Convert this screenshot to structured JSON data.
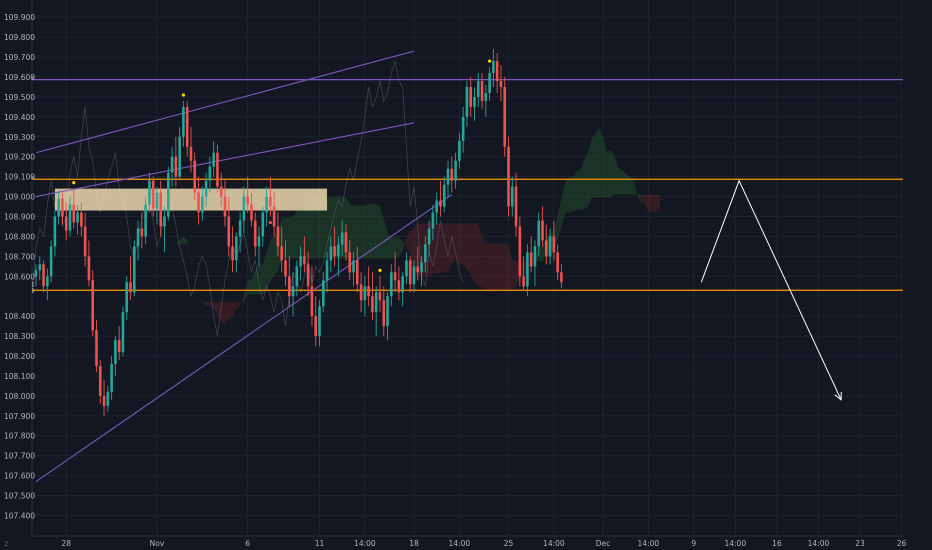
{
  "chart_data": {
    "type": "candlestick",
    "title": "",
    "xlabel": "",
    "ylabel": "",
    "ylim": [
      107.35,
      109.97
    ],
    "y_ticks": [
      "109.900",
      "109.800",
      "109.700",
      "109.600",
      "109.500",
      "109.400",
      "109.300",
      "109.200",
      "109.100",
      "109.000",
      "108.900",
      "108.800",
      "108.700",
      "108.600",
      "108.400",
      "108.300",
      "108.200",
      "108.100",
      "108.000",
      "107.900",
      "107.800",
      "107.700",
      "107.600",
      "107.500",
      "107.400"
    ],
    "x_ticks": [
      {
        "label": "28",
        "bar": 8
      },
      {
        "label": "Nov",
        "bar": 32
      },
      {
        "label": "6",
        "bar": 56
      },
      {
        "label": "11",
        "bar": 75
      },
      {
        "label": "14:00",
        "bar": 87
      },
      {
        "label": "18",
        "bar": 100
      },
      {
        "label": "14:00",
        "bar": 112
      },
      {
        "label": "25",
        "bar": 125
      },
      {
        "label": "14:00",
        "bar": 137
      },
      {
        "label": "Dec",
        "bar": 150
      },
      {
        "label": "14:00",
        "bar": 162
      },
      {
        "label": "9",
        "bar": 174
      },
      {
        "label": "14:00",
        "bar": 185
      },
      {
        "label": "16",
        "bar": 196
      },
      {
        "label": "14:00",
        "bar": 207
      },
      {
        "label": "23",
        "bar": 218
      },
      {
        "label": "26",
        "bar": 229
      }
    ],
    "corner_label": "2",
    "horizontal_levels": [
      {
        "value": 109.587,
        "label": "109.587",
        "color": "#7e57c2"
      },
      {
        "value": 109.087,
        "label": "109.087",
        "color": "#ff9800"
      },
      {
        "value": 108.53,
        "label": "108.530",
        "color": "#ff9800"
      }
    ],
    "price_tag": {
      "value": 108.558,
      "label": "108.558",
      "color": "#f23645"
    },
    "colors": {
      "up": "#26a69a",
      "down": "#ef5350",
      "up_cloud": "#2e7d32",
      "down_cloud": "#8e2b2b",
      "arrow": "#ffffff",
      "zone": "#f5deb3"
    },
    "trendlines": [
      {
        "from": [
          0,
          109.22
        ],
        "to": [
          100,
          109.73
        ]
      },
      {
        "from": [
          0,
          109.0
        ],
        "to": [
          100,
          109.37
        ]
      },
      {
        "from": [
          0,
          107.57
        ],
        "to": [
          110,
          109.01
        ]
      }
    ],
    "zone": {
      "bar_from": 5,
      "bar_to": 77,
      "top": 109.04,
      "bottom": 108.93
    },
    "projection": [
      {
        "bar": 176,
        "value": 108.57
      },
      {
        "bar": 186,
        "value": 109.08
      },
      {
        "bar": 213,
        "value": 107.98
      }
    ],
    "candles": [
      [
        108.6,
        108.66,
        108.55,
        108.63
      ],
      [
        108.63,
        108.7,
        108.58,
        108.66
      ],
      [
        108.66,
        108.68,
        108.52,
        108.55
      ],
      [
        108.55,
        108.64,
        108.48,
        108.6
      ],
      [
        108.6,
        108.78,
        108.57,
        108.75
      ],
      [
        108.75,
        108.93,
        108.7,
        108.9
      ],
      [
        108.9,
        109.03,
        108.86,
        108.99
      ],
      [
        108.99,
        109.02,
        108.86,
        108.9
      ],
      [
        108.9,
        108.97,
        108.78,
        108.83
      ],
      [
        108.83,
        109.0,
        108.8,
        108.96
      ],
      [
        108.96,
        109.04,
        108.84,
        108.87
      ],
      [
        108.87,
        108.96,
        108.81,
        108.92
      ],
      [
        108.92,
        108.97,
        108.8,
        108.85
      ],
      [
        108.85,
        108.92,
        108.65,
        108.7
      ],
      [
        108.7,
        108.78,
        108.55,
        108.58
      ],
      [
        108.58,
        108.63,
        108.3,
        108.33
      ],
      [
        108.33,
        108.38,
        108.12,
        108.15
      ],
      [
        108.15,
        108.18,
        107.96,
        108.0
      ],
      [
        108.0,
        108.08,
        107.9,
        107.95
      ],
      [
        107.95,
        108.05,
        107.92,
        108.02
      ],
      [
        108.02,
        108.2,
        107.98,
        108.16
      ],
      [
        108.16,
        108.3,
        108.1,
        108.28
      ],
      [
        108.28,
        108.35,
        108.18,
        108.22
      ],
      [
        108.22,
        108.45,
        108.2,
        108.42
      ],
      [
        108.42,
        108.6,
        108.38,
        108.57
      ],
      [
        108.57,
        108.7,
        108.48,
        108.52
      ],
      [
        108.52,
        108.78,
        108.5,
        108.75
      ],
      [
        108.75,
        108.88,
        108.68,
        108.84
      ],
      [
        108.84,
        108.92,
        108.74,
        108.8
      ],
      [
        108.8,
        109.0,
        108.76,
        108.96
      ],
      [
        108.96,
        109.12,
        108.92,
        109.08
      ],
      [
        109.08,
        109.1,
        108.9,
        108.94
      ],
      [
        108.94,
        109.05,
        108.86,
        109.02
      ],
      [
        109.02,
        109.08,
        108.8,
        108.85
      ],
      [
        108.85,
        108.95,
        108.72,
        108.9
      ],
      [
        108.9,
        109.15,
        108.88,
        109.12
      ],
      [
        109.12,
        109.25,
        109.05,
        109.2
      ],
      [
        109.2,
        109.3,
        109.05,
        109.1
      ],
      [
        109.1,
        109.35,
        109.08,
        109.3
      ],
      [
        109.3,
        109.48,
        109.25,
        109.45
      ],
      [
        109.45,
        109.48,
        109.2,
        109.25
      ],
      [
        109.25,
        109.35,
        109.12,
        109.18
      ],
      [
        109.18,
        109.22,
        108.98,
        109.02
      ],
      [
        109.02,
        109.1,
        108.86,
        108.92
      ],
      [
        108.92,
        109.05,
        108.88,
        109.0
      ],
      [
        109.0,
        109.12,
        108.95,
        109.08
      ],
      [
        109.08,
        109.2,
        109.02,
        109.15
      ],
      [
        109.15,
        109.28,
        109.1,
        109.22
      ],
      [
        109.22,
        109.26,
        109.02,
        109.05
      ],
      [
        109.05,
        109.12,
        108.95,
        109.0
      ],
      [
        109.0,
        109.08,
        108.85,
        108.9
      ],
      [
        108.9,
        109.0,
        108.7,
        108.75
      ],
      [
        108.75,
        108.85,
        108.62,
        108.68
      ],
      [
        108.68,
        108.82,
        108.62,
        108.8
      ],
      [
        108.8,
        108.92,
        108.72,
        108.88
      ],
      [
        108.88,
        109.05,
        108.82,
        109.0
      ],
      [
        109.0,
        109.1,
        108.92,
        108.96
      ],
      [
        108.96,
        109.02,
        108.85,
        108.88
      ],
      [
        108.88,
        108.92,
        108.7,
        108.75
      ],
      [
        108.75,
        108.85,
        108.65,
        108.8
      ],
      [
        108.8,
        108.95,
        108.75,
        108.92
      ],
      [
        108.92,
        109.05,
        108.85,
        109.0
      ],
      [
        109.0,
        109.1,
        108.9,
        108.95
      ],
      [
        108.95,
        109.02,
        108.8,
        108.85
      ],
      [
        108.85,
        108.92,
        108.7,
        108.75
      ],
      [
        108.75,
        108.85,
        108.62,
        108.68
      ],
      [
        108.68,
        108.78,
        108.55,
        108.6
      ],
      [
        108.6,
        108.7,
        108.45,
        108.5
      ],
      [
        108.5,
        108.62,
        108.4,
        108.55
      ],
      [
        108.55,
        108.68,
        108.5,
        108.65
      ],
      [
        108.65,
        108.75,
        108.58,
        108.7
      ],
      [
        108.7,
        108.8,
        108.62,
        108.66
      ],
      [
        108.66,
        108.72,
        108.5,
        108.55
      ],
      [
        108.55,
        108.65,
        108.35,
        108.4
      ],
      [
        108.4,
        108.5,
        108.25,
        108.3
      ],
      [
        108.3,
        108.48,
        108.25,
        108.45
      ],
      [
        108.45,
        108.62,
        108.42,
        108.58
      ],
      [
        108.58,
        108.72,
        108.52,
        108.68
      ],
      [
        108.68,
        108.8,
        108.62,
        108.75
      ],
      [
        108.75,
        108.85,
        108.65,
        108.7
      ],
      [
        108.7,
        108.8,
        108.6,
        108.76
      ],
      [
        108.76,
        108.88,
        108.7,
        108.82
      ],
      [
        108.82,
        108.86,
        108.68,
        108.72
      ],
      [
        108.72,
        108.78,
        108.58,
        108.62
      ],
      [
        108.62,
        108.72,
        108.55,
        108.68
      ],
      [
        108.68,
        108.75,
        108.52,
        108.56
      ],
      [
        108.56,
        108.62,
        108.42,
        108.48
      ],
      [
        108.48,
        108.6,
        108.4,
        108.55
      ],
      [
        108.55,
        108.65,
        108.45,
        108.5
      ],
      [
        108.5,
        108.62,
        108.38,
        108.42
      ],
      [
        108.42,
        108.55,
        108.3,
        108.52
      ],
      [
        108.52,
        108.6,
        108.42,
        108.48
      ],
      [
        108.48,
        108.55,
        108.3,
        108.35
      ],
      [
        108.35,
        108.52,
        108.28,
        108.5
      ],
      [
        108.5,
        108.66,
        108.45,
        108.62
      ],
      [
        108.62,
        108.72,
        108.52,
        108.58
      ],
      [
        108.58,
        108.65,
        108.48,
        108.52
      ],
      [
        108.52,
        108.62,
        108.45,
        108.6
      ],
      [
        108.6,
        108.72,
        108.56,
        108.68
      ],
      [
        108.68,
        108.7,
        108.52,
        108.56
      ],
      [
        108.56,
        108.68,
        108.52,
        108.65
      ],
      [
        108.65,
        108.75,
        108.58,
        108.62
      ],
      [
        108.62,
        108.7,
        108.55,
        108.67
      ],
      [
        108.67,
        108.8,
        108.62,
        108.76
      ],
      [
        108.76,
        108.88,
        108.7,
        108.84
      ],
      [
        108.84,
        108.96,
        108.78,
        108.92
      ],
      [
        108.92,
        109.02,
        108.86,
        108.98
      ],
      [
        108.98,
        109.08,
        108.9,
        108.95
      ],
      [
        108.95,
        109.1,
        108.92,
        109.06
      ],
      [
        109.06,
        109.18,
        109.0,
        109.14
      ],
      [
        109.14,
        109.2,
        109.02,
        109.08
      ],
      [
        109.08,
        109.22,
        109.04,
        109.18
      ],
      [
        109.18,
        109.32,
        109.14,
        109.28
      ],
      [
        109.28,
        109.45,
        109.22,
        109.4
      ],
      [
        109.4,
        109.58,
        109.35,
        109.55
      ],
      [
        109.55,
        109.6,
        109.4,
        109.45
      ],
      [
        109.45,
        109.55,
        109.38,
        109.5
      ],
      [
        109.5,
        109.62,
        109.45,
        109.58
      ],
      [
        109.58,
        109.62,
        109.44,
        109.48
      ],
      [
        109.48,
        109.56,
        109.4,
        109.52
      ],
      [
        109.52,
        109.65,
        109.48,
        109.62
      ],
      [
        109.62,
        109.74,
        109.55,
        109.68
      ],
      [
        109.68,
        109.72,
        109.52,
        109.58
      ],
      [
        109.58,
        109.66,
        109.48,
        109.55
      ],
      [
        109.55,
        109.6,
        109.2,
        109.25
      ],
      [
        109.25,
        109.3,
        108.9,
        108.95
      ],
      [
        108.95,
        109.1,
        108.9,
        109.05
      ],
      [
        109.05,
        109.12,
        108.8,
        108.85
      ],
      [
        108.85,
        108.9,
        108.55,
        108.6
      ],
      [
        108.6,
        108.7,
        108.53,
        108.55
      ],
      [
        108.55,
        108.76,
        108.5,
        108.72
      ],
      [
        108.72,
        108.8,
        108.62,
        108.65
      ],
      [
        108.65,
        108.78,
        108.55,
        108.75
      ],
      [
        108.75,
        108.92,
        108.7,
        108.88
      ],
      [
        108.88,
        108.95,
        108.75,
        108.78
      ],
      [
        108.78,
        108.86,
        108.66,
        108.7
      ],
      [
        108.7,
        108.84,
        108.66,
        108.8
      ],
      [
        108.8,
        108.88,
        108.68,
        108.72
      ],
      [
        108.72,
        108.76,
        108.58,
        108.62
      ],
      [
        108.62,
        108.66,
        108.54,
        108.57
      ]
    ]
  }
}
